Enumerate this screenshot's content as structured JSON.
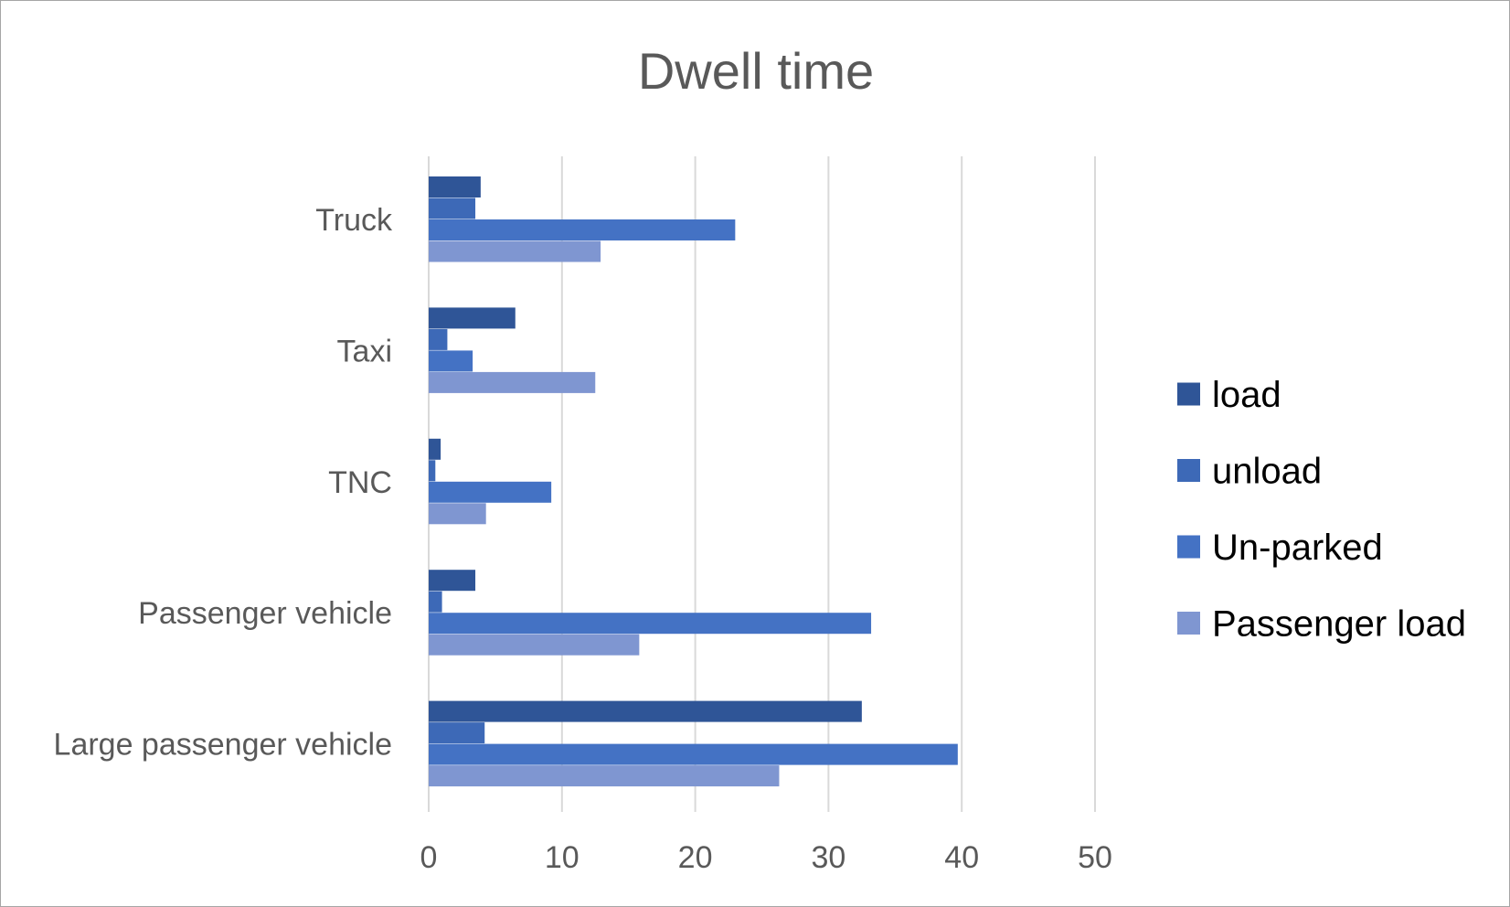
{
  "chart_data": {
    "type": "bar",
    "orientation": "horizontal",
    "title": "Dwell time",
    "categories": [
      "Truck",
      "Taxi",
      "TNC",
      "Passenger vehicle",
      "Large passenger vehicle"
    ],
    "series": [
      {
        "name": "load",
        "color": "#2f5597",
        "values": [
          3.9,
          6.5,
          0.9,
          3.5,
          32.5
        ]
      },
      {
        "name": "unload",
        "color": "#3d69b7",
        "values": [
          3.5,
          1.4,
          0.5,
          1.0,
          4.2
        ]
      },
      {
        "name": "Un-parked",
        "color": "#4472c4",
        "values": [
          23.0,
          3.3,
          9.2,
          33.2,
          39.7
        ]
      },
      {
        "name": "Passenger load",
        "color": "#7f96d1",
        "values": [
          12.9,
          12.5,
          4.3,
          15.8,
          26.3
        ]
      }
    ],
    "xlim": [
      0,
      50
    ],
    "x_ticks": [
      "0",
      "10",
      "20",
      "30",
      "40",
      "50"
    ],
    "xlabel": "",
    "ylabel": "",
    "grid": "vertical",
    "legend_position": "right"
  }
}
